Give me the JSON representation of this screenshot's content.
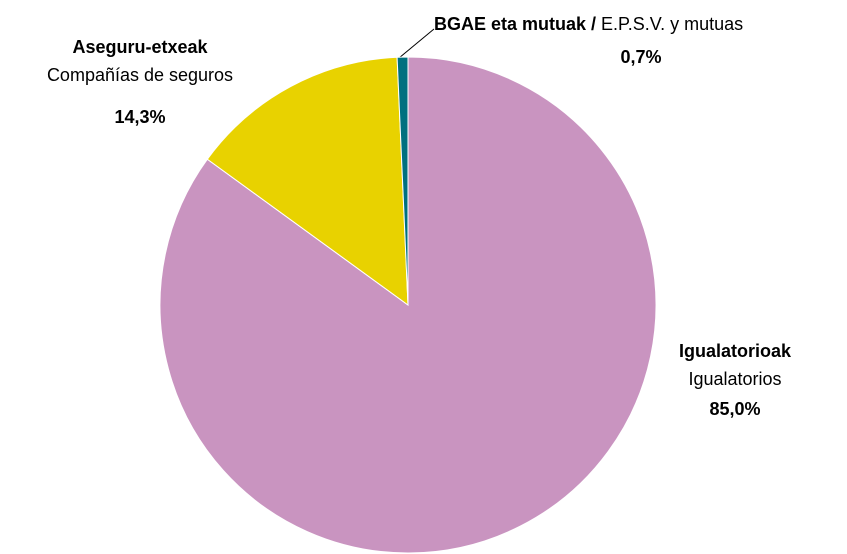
{
  "chart_data": {
    "type": "pie",
    "categories": [
      "Igualatorioak",
      "Aseguru-etxeak",
      "BGAE eta mutuak /"
    ],
    "categories_es": [
      "Igualatorios",
      "Compañías de seguros",
      "E.P.S.V. y mutuas"
    ],
    "values": [
      85.0,
      14.3,
      0.7
    ],
    "value_labels": [
      "85,0%",
      "14,3%",
      "0,7%"
    ],
    "colors": [
      "#c994c0",
      "#e8d200",
      "#00707f"
    ]
  }
}
